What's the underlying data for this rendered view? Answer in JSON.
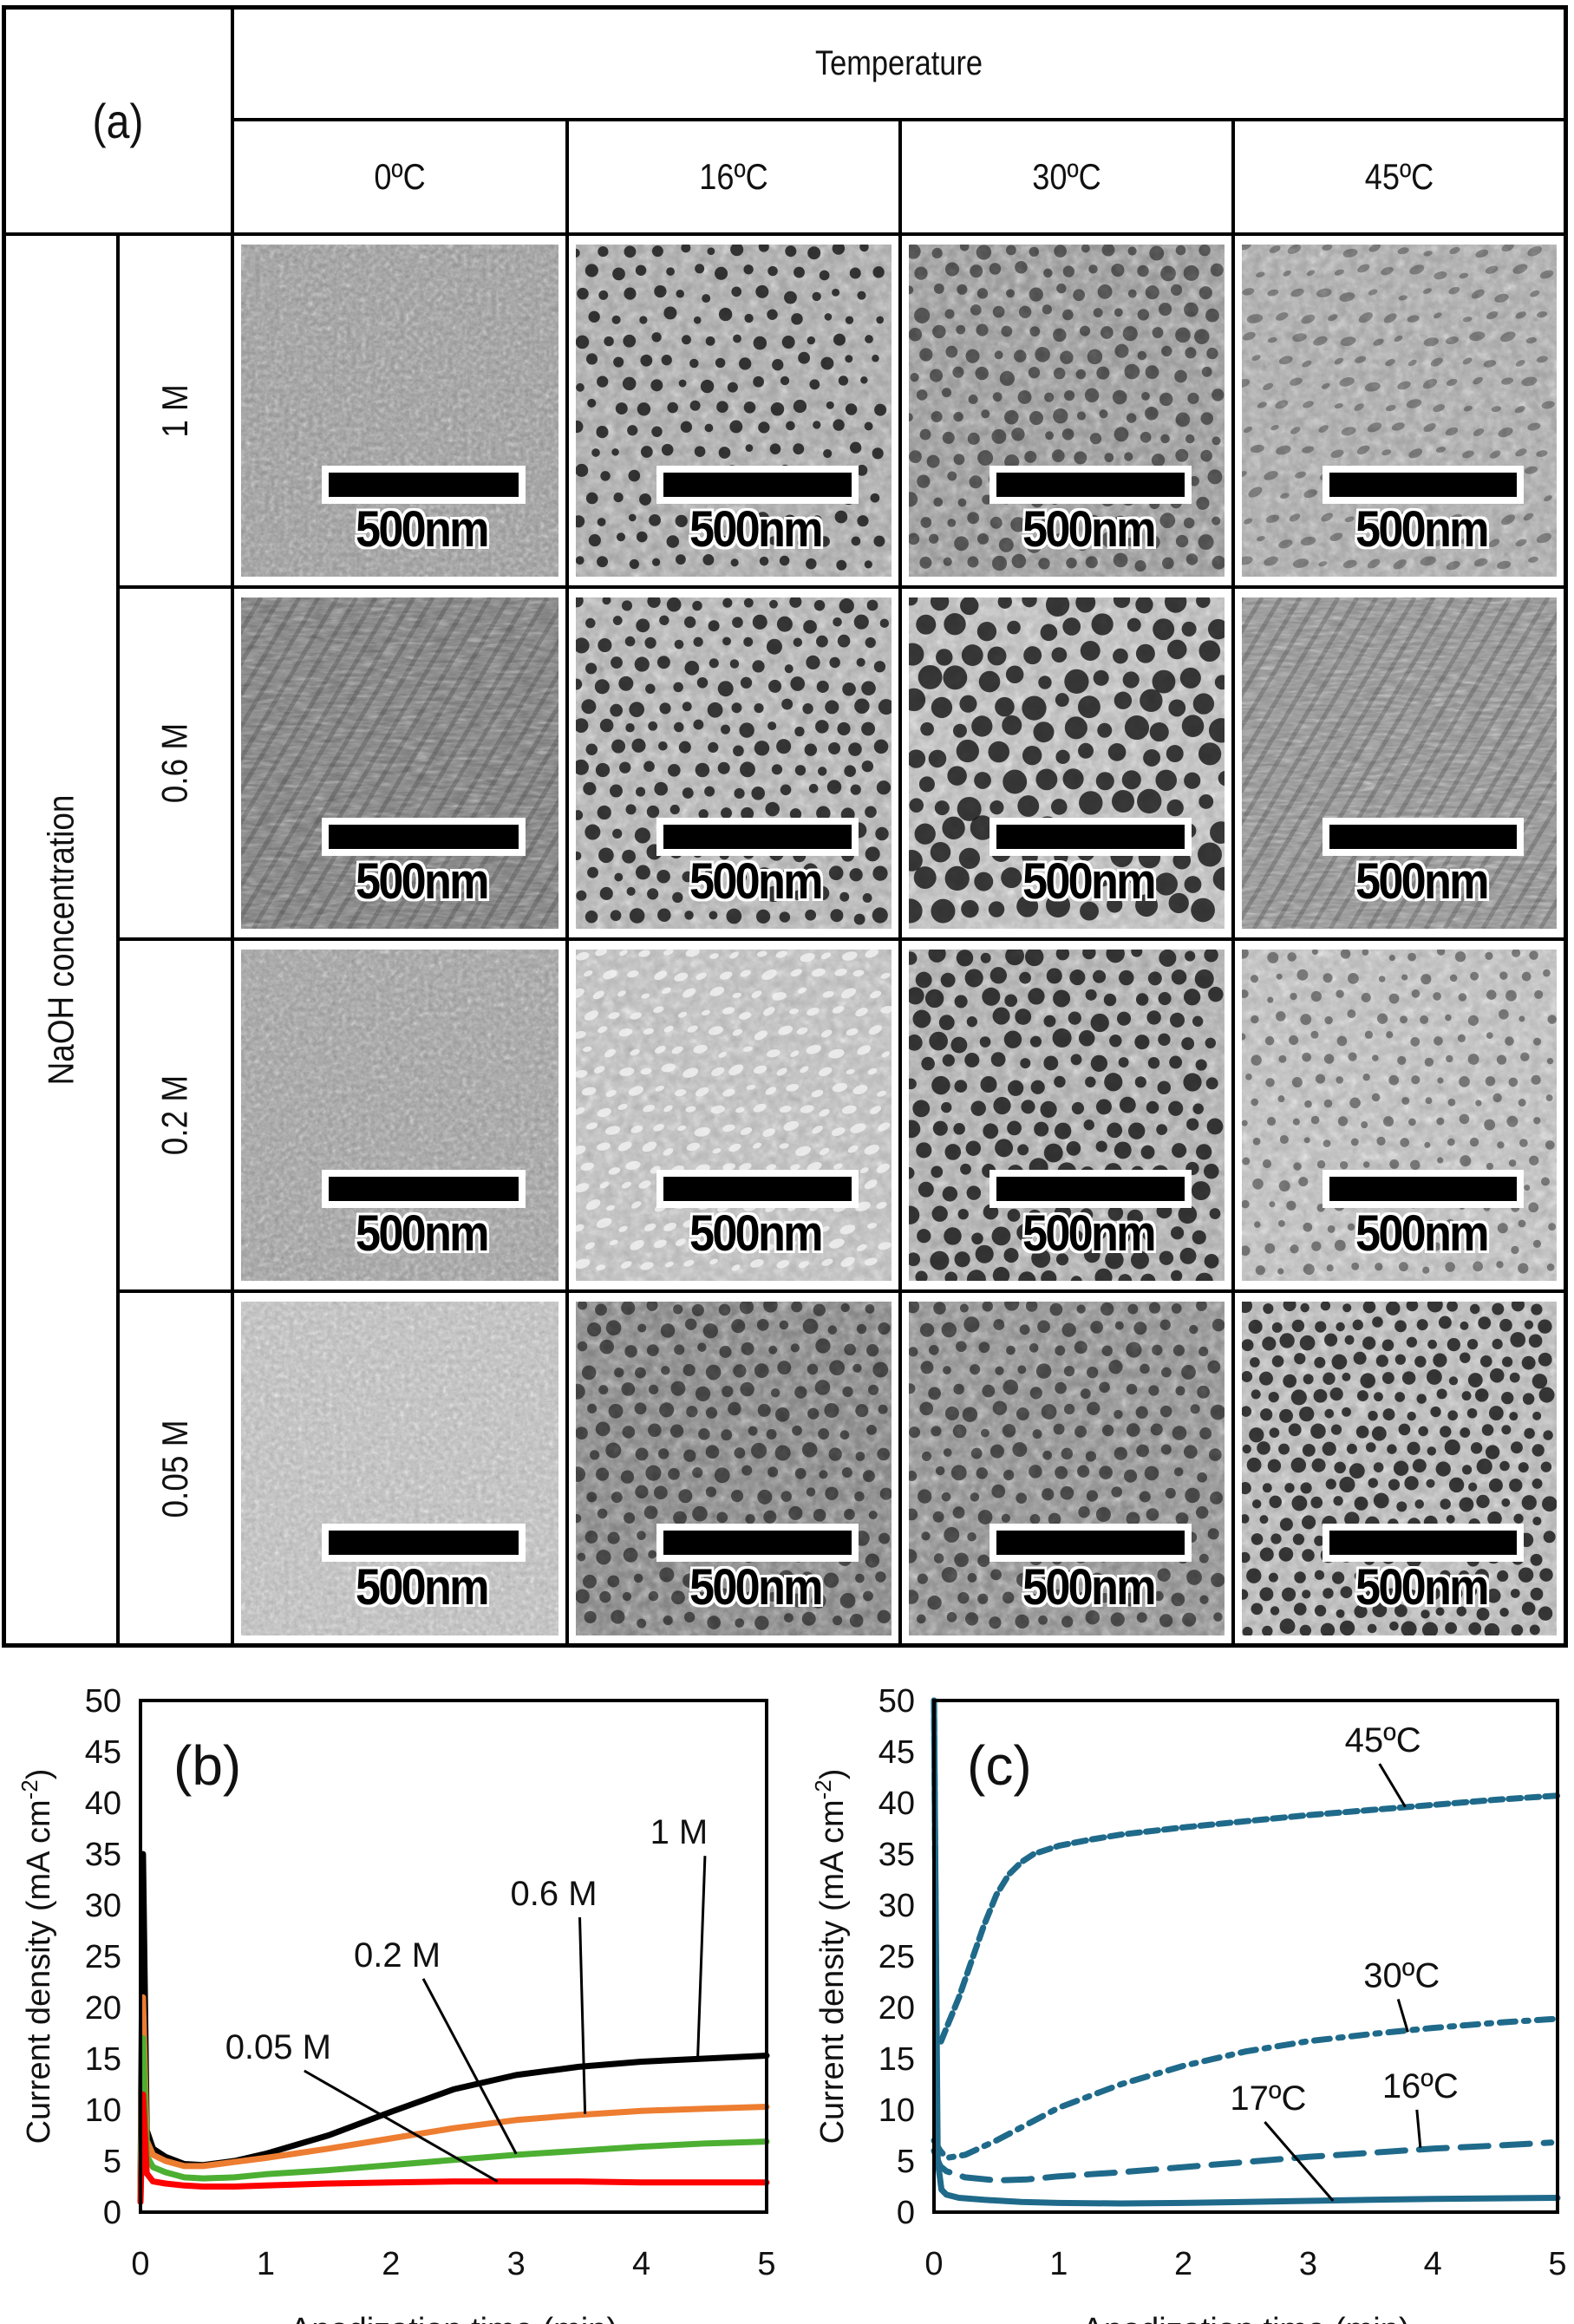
{
  "figure": {
    "panel_a": {
      "label": "(a)",
      "column_group_header": "Temperature",
      "row_group_header": "NaOH concentration",
      "columns": [
        "0ºC",
        "16ºC",
        "30ºC",
        "45ºC"
      ],
      "rows": [
        "1 M",
        "0.6 M",
        "0.2 M",
        "0.05 M"
      ],
      "scale_bar_label": "500nm",
      "cells": [
        [
          {
            "texture": "smooth",
            "tone": 150
          },
          {
            "texture": "pores-sparse",
            "tone": 165
          },
          {
            "texture": "pores-mottled",
            "tone": 150
          },
          {
            "texture": "wavy",
            "tone": 165
          }
        ],
        [
          {
            "texture": "striated",
            "tone": 120
          },
          {
            "texture": "pores-regular",
            "tone": 175
          },
          {
            "texture": "pores-large",
            "tone": 185
          },
          {
            "texture": "striated-fine",
            "tone": 140
          }
        ],
        [
          {
            "texture": "smooth",
            "tone": 155
          },
          {
            "texture": "scaly",
            "tone": 185
          },
          {
            "texture": "pores-hex",
            "tone": 170
          },
          {
            "texture": "network",
            "tone": 185
          }
        ],
        [
          {
            "texture": "smooth-light",
            "tone": 185
          },
          {
            "texture": "pores-dark",
            "tone": 130
          },
          {
            "texture": "pores-streaky",
            "tone": 140
          },
          {
            "texture": "pores-dense",
            "tone": 180
          }
        ]
      ]
    }
  },
  "chart_data": [
    {
      "id": "b",
      "panel_label": "(b)",
      "type": "line",
      "title": "",
      "xlabel": "Anodization time (min)",
      "ylabel": "Current density (mA cm⁻²)",
      "xlim": [
        0,
        5
      ],
      "ylim": [
        0,
        50
      ],
      "xticks": [
        0,
        1,
        2,
        3,
        4,
        5
      ],
      "yticks": [
        0,
        5,
        10,
        15,
        20,
        25,
        30,
        35,
        40,
        45,
        50
      ],
      "grid": false,
      "legend": "inline annotations with leader lines",
      "series": [
        {
          "name": "1 M",
          "color": "#000000",
          "style": "solid",
          "x": [
            0.0,
            0.02,
            0.05,
            0.1,
            0.2,
            0.35,
            0.5,
            0.75,
            1.0,
            1.5,
            2.0,
            2.5,
            3.0,
            3.5,
            4.0,
            4.5,
            5.0
          ],
          "y": [
            2,
            35,
            8,
            6.2,
            5.4,
            4.7,
            4.6,
            5.0,
            5.7,
            7.5,
            9.8,
            12.0,
            13.4,
            14.2,
            14.7,
            15.0,
            15.3
          ]
        },
        {
          "name": "0.6 M",
          "color": "#ed7d31",
          "style": "solid",
          "x": [
            0.0,
            0.02,
            0.05,
            0.1,
            0.2,
            0.35,
            0.5,
            0.75,
            1.0,
            1.5,
            2.0,
            2.5,
            3.0,
            3.5,
            4.0,
            4.5,
            5.0
          ],
          "y": [
            2,
            21,
            7,
            5.6,
            5.0,
            4.5,
            4.5,
            4.9,
            5.3,
            6.2,
            7.2,
            8.2,
            9.0,
            9.5,
            9.9,
            10.1,
            10.3
          ]
        },
        {
          "name": "0.2 M",
          "color": "#4caf32",
          "style": "solid",
          "x": [
            0.0,
            0.02,
            0.05,
            0.1,
            0.2,
            0.35,
            0.5,
            0.75,
            1.0,
            1.5,
            2.0,
            2.5,
            3.0,
            3.5,
            4.0,
            4.5,
            5.0
          ],
          "y": [
            1,
            17,
            5.5,
            4.4,
            3.9,
            3.4,
            3.3,
            3.4,
            3.7,
            4.1,
            4.6,
            5.1,
            5.6,
            6.0,
            6.4,
            6.7,
            6.9
          ]
        },
        {
          "name": "0.05 M",
          "color": "#ff0000",
          "style": "solid",
          "x": [
            0.0,
            0.02,
            0.05,
            0.1,
            0.2,
            0.35,
            0.5,
            0.75,
            1.0,
            1.5,
            2.0,
            2.5,
            3.0,
            3.5,
            4.0,
            4.5,
            5.0
          ],
          "y": [
            1,
            11.5,
            3.8,
            3.0,
            2.8,
            2.6,
            2.5,
            2.5,
            2.6,
            2.8,
            2.9,
            3.0,
            3.0,
            3.0,
            2.9,
            2.9,
            2.9
          ]
        }
      ],
      "annotations": [
        {
          "text": "1 M",
          "label_x": 4.3,
          "label_y": 36,
          "to_x": 4.45,
          "to_y": 15.1
        },
        {
          "text": "0.6 M",
          "label_x": 3.3,
          "label_y": 30,
          "to_x": 3.55,
          "to_y": 9.6
        },
        {
          "text": "0.2 M",
          "label_x": 2.05,
          "label_y": 24,
          "to_x": 3.0,
          "to_y": 5.7
        },
        {
          "text": "0.05 M",
          "label_x": 1.1,
          "label_y": 15,
          "to_x": 2.85,
          "to_y": 3.0
        }
      ]
    },
    {
      "id": "c",
      "panel_label": "(c)",
      "type": "line",
      "title": "",
      "xlabel": "Anodization time (min)",
      "ylabel": "Current density (mA cm⁻²)",
      "xlim": [
        0,
        5
      ],
      "ylim": [
        0,
        50
      ],
      "xticks": [
        0,
        1,
        2,
        3,
        4,
        5
      ],
      "yticks": [
        0,
        5,
        10,
        15,
        20,
        25,
        30,
        35,
        40,
        45,
        50
      ],
      "grid": false,
      "legend": "inline annotations with leader lines",
      "series": [
        {
          "name": "45ºC",
          "color": "#1f6a8a",
          "style": "dashed-dense",
          "x": [
            0.0,
            0.02,
            0.05,
            0.1,
            0.2,
            0.3,
            0.4,
            0.5,
            0.6,
            0.7,
            0.8,
            1.0,
            1.25,
            1.5,
            2.0,
            2.5,
            3.0,
            3.5,
            4.0,
            4.5,
            5.0
          ],
          "y": [
            50,
            17,
            16.5,
            18,
            21,
            24.5,
            28,
            31,
            33,
            34.2,
            35,
            35.8,
            36.4,
            36.9,
            37.6,
            38.2,
            38.8,
            39.3,
            39.8,
            40.3,
            40.7
          ]
        },
        {
          "name": "30ºC",
          "color": "#1f6a8a",
          "style": "dash-dot",
          "x": [
            0.0,
            0.05,
            0.1,
            0.25,
            0.5,
            0.75,
            1.0,
            1.5,
            2.0,
            2.5,
            3.0,
            3.5,
            4.0,
            4.5,
            5.0
          ],
          "y": [
            7,
            6,
            5.3,
            5.6,
            7,
            8.6,
            10.2,
            12.5,
            14.3,
            15.7,
            16.7,
            17.4,
            18.0,
            18.5,
            18.9
          ]
        },
        {
          "name": "16ºC",
          "color": "#1f6a8a",
          "style": "long-dash",
          "x": [
            0.0,
            0.05,
            0.1,
            0.25,
            0.5,
            0.75,
            1.0,
            1.5,
            2.0,
            2.5,
            3.0,
            3.5,
            4.0,
            4.5,
            4.95
          ],
          "y": [
            6,
            4.5,
            4.0,
            3.4,
            3.1,
            3.2,
            3.5,
            3.9,
            4.4,
            4.9,
            5.4,
            5.8,
            6.2,
            6.5,
            6.8
          ]
        },
        {
          "name": "17ºC",
          "color": "#1f6a8a",
          "style": "solid",
          "x": [
            0.0,
            0.03,
            0.06,
            0.1,
            0.2,
            0.4,
            0.7,
            1.0,
            1.5,
            2.0,
            2.5,
            3.0,
            3.5,
            4.0,
            4.5,
            5.0
          ],
          "y": [
            50,
            5,
            2.2,
            1.7,
            1.4,
            1.2,
            1.0,
            0.9,
            0.85,
            0.9,
            1.0,
            1.1,
            1.2,
            1.3,
            1.35,
            1.4
          ]
        }
      ],
      "annotations": [
        {
          "text": "45ºC",
          "label_x": 3.6,
          "label_y": 45,
          "to_x": 3.78,
          "to_y": 39.6
        },
        {
          "text": "30ºC",
          "label_x": 3.75,
          "label_y": 22,
          "to_x": 3.8,
          "to_y": 17.6
        },
        {
          "text": "16ºC",
          "label_x": 3.9,
          "label_y": 11.2,
          "to_x": 3.9,
          "to_y": 6.3
        },
        {
          "text": "17ºC",
          "label_x": 2.68,
          "label_y": 10,
          "to_x": 3.2,
          "to_y": 1.1
        }
      ]
    }
  ]
}
